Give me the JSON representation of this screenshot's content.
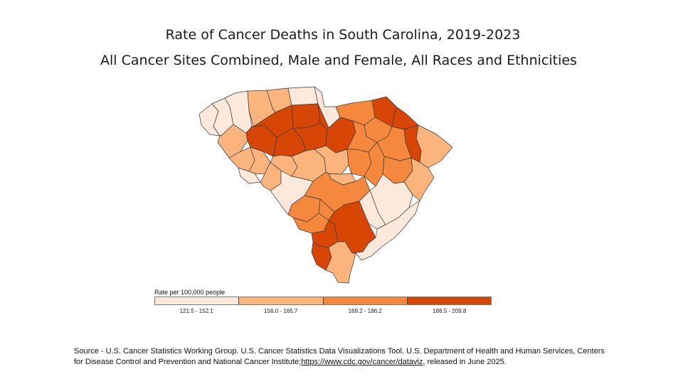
{
  "title": {
    "line1": "Rate of Cancer Deaths  in South Carolina, 2019-2023",
    "line2": "All Cancer Sites Combined, Male and Female, All Races and Ethnicities"
  },
  "legend": {
    "title": "Rate per 100,000 people",
    "classes": [
      {
        "label": "121.5 - 152.1",
        "color": "#fde9dc"
      },
      {
        "label": "156.0 - 165.7",
        "color": "#fbb47c"
      },
      {
        "label": "169.2 - 186.2",
        "color": "#f6883e"
      },
      {
        "label": "186.5 - 209.8",
        "color": "#d84605"
      }
    ]
  },
  "source": {
    "text_before": "Source - U.S. Cancer Statistics Working Group. U.S. Cancer Statistics Data Visualizations Tool. U.S. Department of Health and Human Services, Centers for Disease Control and Prevention and National Cancer Institute;",
    "link": "https://www.cdc.gov/cancer/dataviz",
    "text_after": ", released in June 2025."
  },
  "counties": [
    {
      "id": "oconee",
      "cls": 0
    },
    {
      "id": "pickens",
      "cls": 0
    },
    {
      "id": "greenville",
      "cls": 0
    },
    {
      "id": "spartanburg",
      "cls": 1
    },
    {
      "id": "cherokee",
      "cls": 1
    },
    {
      "id": "york",
      "cls": 0
    },
    {
      "id": "lancaster",
      "cls": 0
    },
    {
      "id": "chesterfield",
      "cls": 2
    },
    {
      "id": "marlboro",
      "cls": 3
    },
    {
      "id": "dillon",
      "cls": 3
    },
    {
      "id": "horry",
      "cls": 1
    },
    {
      "id": "marion",
      "cls": 3
    },
    {
      "id": "darlington",
      "cls": 2
    },
    {
      "id": "florence",
      "cls": 2
    },
    {
      "id": "anderson",
      "cls": 1
    },
    {
      "id": "abbeville",
      "cls": 1
    },
    {
      "id": "greenwood",
      "cls": 1
    },
    {
      "id": "laurens",
      "cls": 3
    },
    {
      "id": "union",
      "cls": 3
    },
    {
      "id": "chester",
      "cls": 3
    },
    {
      "id": "newberry",
      "cls": 3
    },
    {
      "id": "fairfield",
      "cls": 3
    },
    {
      "id": "kershaw",
      "cls": 3
    },
    {
      "id": "lee",
      "cls": 2
    },
    {
      "id": "mccormick",
      "cls": 0
    },
    {
      "id": "edgefield",
      "cls": 1
    },
    {
      "id": "saluda",
      "cls": 1
    },
    {
      "id": "lexington",
      "cls": 1
    },
    {
      "id": "richland",
      "cls": 1
    },
    {
      "id": "sumter",
      "cls": 2
    },
    {
      "id": "clarendon",
      "cls": 2
    },
    {
      "id": "williamsburg",
      "cls": 2
    },
    {
      "id": "georgetown",
      "cls": 1
    },
    {
      "id": "aiken",
      "cls": 0
    },
    {
      "id": "calhoun",
      "cls": 1
    },
    {
      "id": "orangeburg",
      "cls": 2
    },
    {
      "id": "barnwell",
      "cls": 2
    },
    {
      "id": "bamberg",
      "cls": 2
    },
    {
      "id": "berkeley",
      "cls": 0
    },
    {
      "id": "allendale",
      "cls": 2
    },
    {
      "id": "dorchester",
      "cls": 0
    },
    {
      "id": "charleston",
      "cls": 0
    },
    {
      "id": "hampton",
      "cls": 3
    },
    {
      "id": "colleton",
      "cls": 3
    },
    {
      "id": "jasper",
      "cls": 3
    },
    {
      "id": "beaufort",
      "cls": 1
    }
  ]
}
